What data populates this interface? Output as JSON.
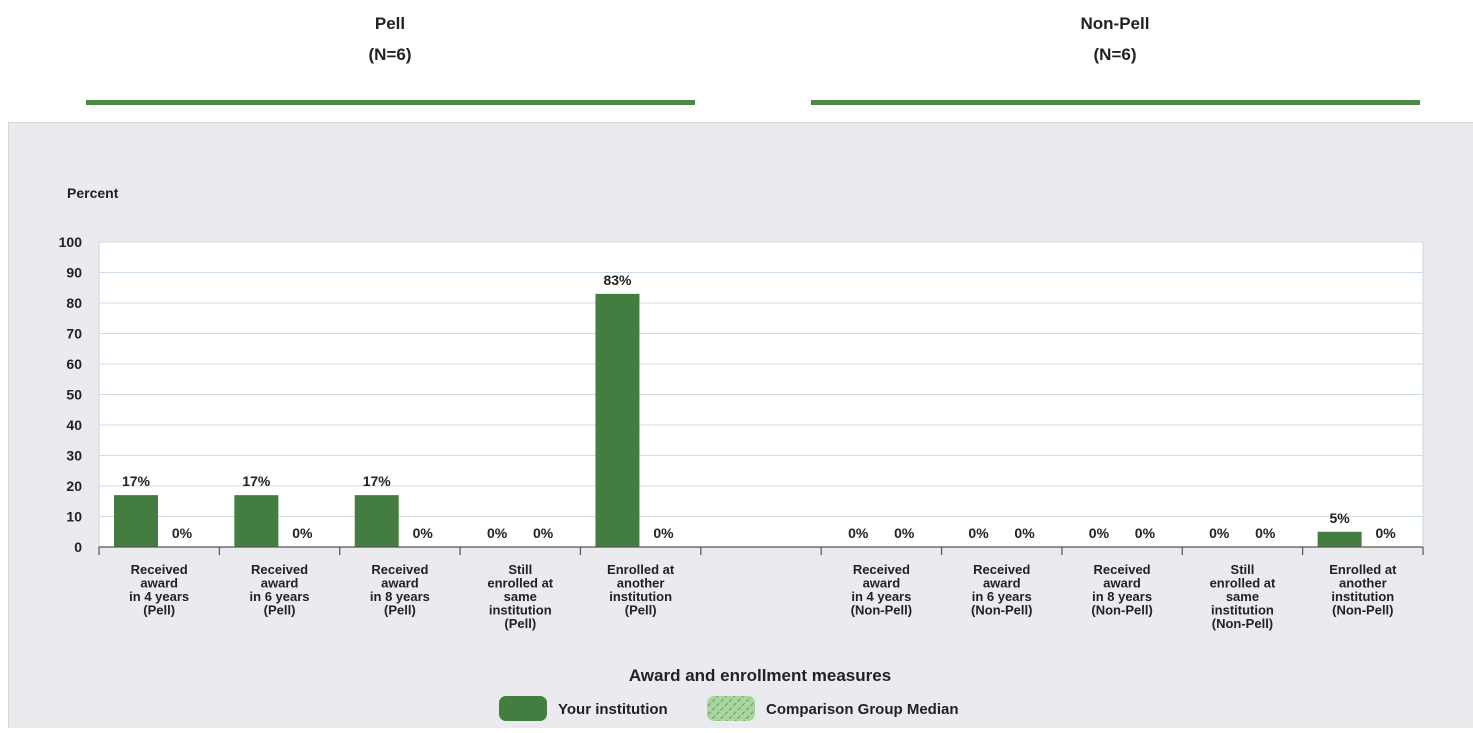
{
  "groups": [
    {
      "title": "Pell",
      "n": "(N=6)"
    },
    {
      "title": "Non-Pell",
      "n": "(N=6)"
    }
  ],
  "colors": {
    "your_institution": "#437d3f",
    "comparison": "#a8d5a0",
    "rule": "#4a8a44",
    "panel_bg": "#ebebef",
    "grid": "#d0dbe8"
  },
  "chart_data": {
    "type": "bar",
    "ylabel": "Percent",
    "xlabel": "Award and enrollment measures",
    "ylim": [
      0,
      100
    ],
    "yticks": [
      0,
      10,
      20,
      30,
      40,
      50,
      60,
      70,
      80,
      90,
      100
    ],
    "grid": true,
    "legend_position": "bottom-center",
    "categories": [
      [
        "Received",
        "award",
        "in 4 years",
        "(Pell)"
      ],
      [
        "Received",
        "award",
        "in 6 years",
        "(Pell)"
      ],
      [
        "Received",
        "award",
        "in 8 years",
        "(Pell)"
      ],
      [
        "Still",
        "enrolled at",
        "same",
        "institution",
        "(Pell)"
      ],
      [
        "Enrolled at",
        "another",
        "institution",
        "(Pell)"
      ],
      [],
      [
        "Received",
        "award",
        "in 4 years",
        "(Non-Pell)"
      ],
      [
        "Received",
        "award",
        "in 6 years",
        "(Non-Pell)"
      ],
      [
        "Received",
        "award",
        "in 8 years",
        "(Non-Pell)"
      ],
      [
        "Still",
        "enrolled at",
        "same",
        "institution",
        "(Non-Pell)"
      ],
      [
        "Enrolled at",
        "another",
        "institution",
        "(Non-Pell)"
      ]
    ],
    "series": [
      {
        "name": "Your institution",
        "values": [
          17,
          17,
          17,
          0,
          83,
          null,
          0,
          0,
          0,
          0,
          5
        ],
        "labels": [
          "17%",
          "17%",
          "17%",
          "0%",
          "83%",
          "",
          "0%",
          "0%",
          "0%",
          "0%",
          "5%"
        ]
      },
      {
        "name": "Comparison Group Median",
        "values": [
          0,
          0,
          0,
          0,
          0,
          null,
          0,
          0,
          0,
          0,
          0
        ],
        "labels": [
          "0%",
          "0%",
          "0%",
          "0%",
          "0%",
          "",
          "0%",
          "0%",
          "0%",
          "0%",
          "0%"
        ]
      }
    ]
  }
}
